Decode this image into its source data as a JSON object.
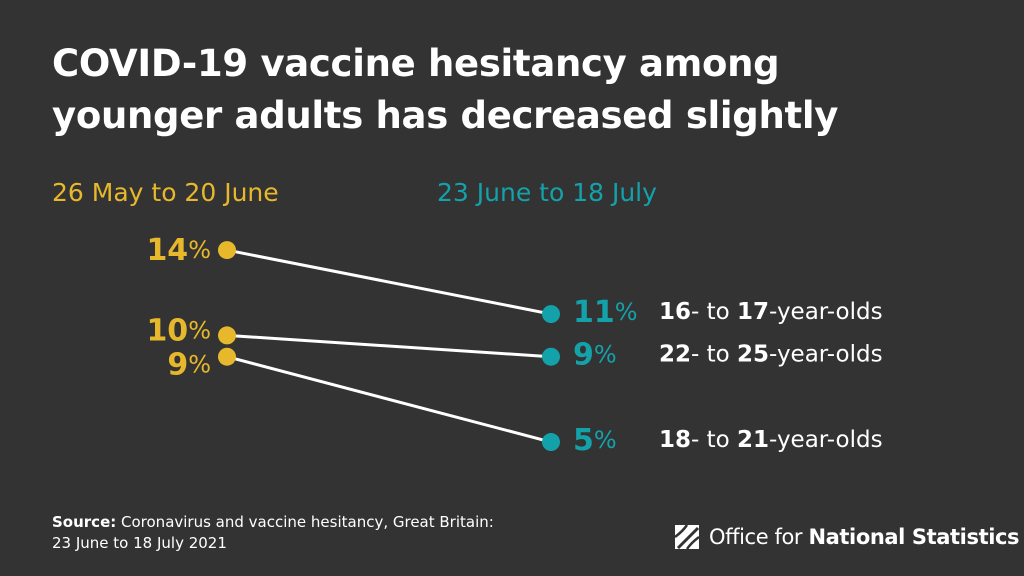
{
  "title_lines": [
    "COVID-19 vaccine hesitancy among",
    "younger adults has decreased slightly"
  ],
  "colors": {
    "background": "#333333",
    "start": "#e8b82c",
    "end": "#14a2aa",
    "line": "#ffffff",
    "text": "#ffffff"
  },
  "chart_data": {
    "type": "line",
    "subtype": "slope",
    "x": [
      "26 May to 20 June",
      "23 June to 18 July"
    ],
    "y_unit": "%",
    "series": [
      {
        "name": "16- to 17-year-olds",
        "values": [
          14,
          11
        ]
      },
      {
        "name": "22- to 25-year-olds",
        "values": [
          10,
          9
        ]
      },
      {
        "name": "18- to 21-year-olds",
        "values": [
          9,
          5
        ]
      }
    ],
    "category_labels": [
      {
        "num1": "16",
        "mid": "- to ",
        "num2": "17",
        "tail": "-year-olds"
      },
      {
        "num1": "22",
        "mid": "- to ",
        "num2": "25",
        "tail": "-year-olds"
      },
      {
        "num1": "18",
        "mid": "- to ",
        "num2": "21",
        "tail": "-year-olds"
      }
    ]
  },
  "source": {
    "label": "Source:",
    "text": " Coronavirus and vaccine hesitancy, Great Britain:",
    "text2": "23 June to 18 July 2021"
  },
  "logo": {
    "text_regular": "Office for ",
    "text_bold": "National Statistics",
    "icon": "ons-logo-icon"
  }
}
